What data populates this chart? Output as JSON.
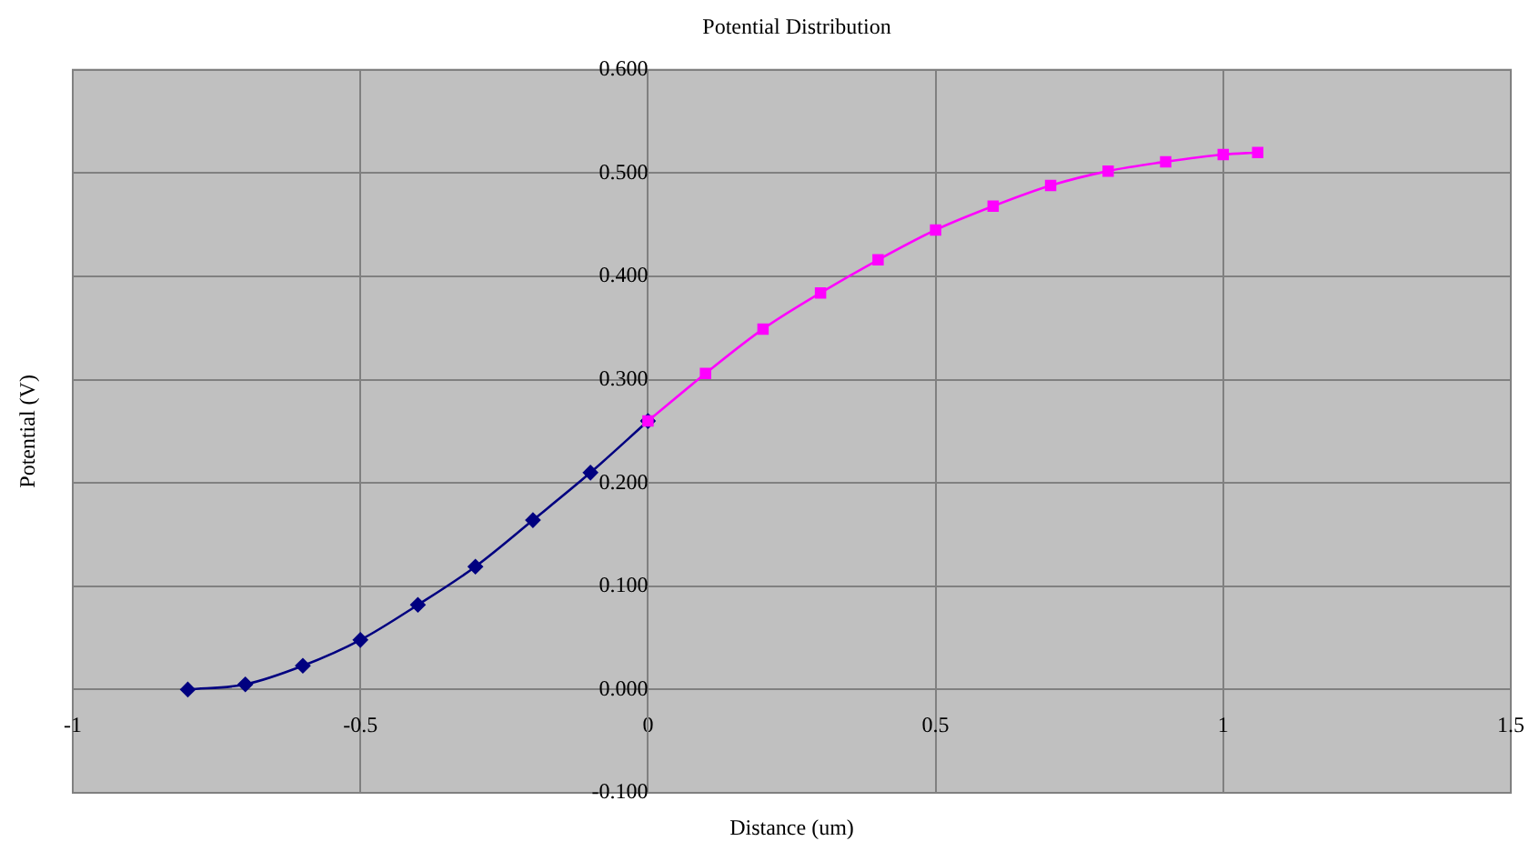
{
  "chart_data": {
    "type": "line",
    "title": "Potential Distribution",
    "xlabel": "Distance (um)",
    "ylabel": "Potential (V)",
    "xlim": [
      -1,
      1.5
    ],
    "xticks": [
      -1,
      -0.5,
      0,
      0.5,
      1,
      1.5
    ],
    "ylim": [
      -0.1,
      0.6
    ],
    "yticks": [
      {
        "value": -0.1,
        "label": "-0.100"
      },
      {
        "value": 0,
        "label": "0.000"
      },
      {
        "value": 0.1,
        "label": "0.100"
      },
      {
        "value": 0.2,
        "label": "0.200"
      },
      {
        "value": 0.3,
        "label": "0.300"
      },
      {
        "value": 0.4,
        "label": "0.400"
      },
      {
        "value": 0.5,
        "label": "0.500"
      },
      {
        "value": 0.6,
        "label": "0.600"
      }
    ],
    "grid": true,
    "legend": false,
    "series": [
      {
        "color": "#000080",
        "marker": "diamond",
        "x": [
          -0.8,
          -0.7,
          -0.6,
          -0.5,
          -0.4,
          -0.3,
          -0.2,
          -0.1,
          0
        ],
        "values": [
          0.0,
          0.005,
          0.023,
          0.048,
          0.082,
          0.119,
          0.164,
          0.21,
          0.26
        ]
      },
      {
        "color": "#ff00ff",
        "marker": "square",
        "x": [
          0,
          0.1,
          0.2,
          0.3,
          0.4,
          0.5,
          0.6,
          0.7,
          0.8,
          0.9,
          1.0,
          1.06
        ],
        "values": [
          0.26,
          0.306,
          0.349,
          0.384,
          0.416,
          0.445,
          0.468,
          0.488,
          0.502,
          0.511,
          0.518,
          0.52
        ]
      }
    ]
  }
}
